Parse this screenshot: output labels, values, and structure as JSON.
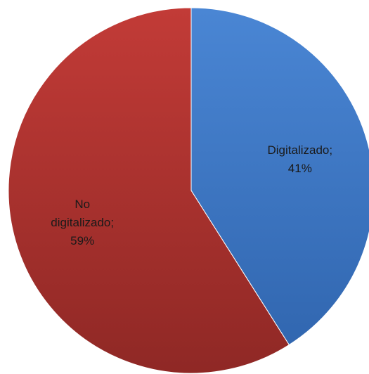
{
  "chart_data": {
    "type": "pie",
    "title": "",
    "slices": [
      {
        "name": "Digitalizado",
        "value": 41,
        "label_lines": [
          "Digitalizado;",
          "41%"
        ],
        "color_light": "#4a86d4",
        "color_dark": "#2f64ad"
      },
      {
        "name": "No digitalizado",
        "value": 59,
        "label_lines": [
          "No",
          "digitalizado;",
          "59%"
        ],
        "color_light": "#c23b37",
        "color_dark": "#8f2825"
      }
    ],
    "start_angle_deg": 0,
    "direction": "clockwise",
    "legend": "none"
  }
}
